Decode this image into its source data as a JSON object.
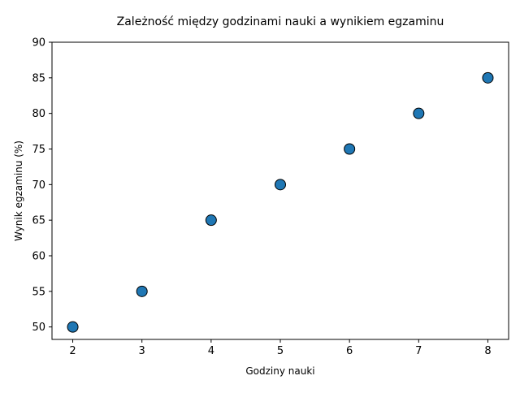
{
  "chart_data": {
    "type": "scatter",
    "title": "Zależność między godzinami nauki a wynikiem egzaminu",
    "xlabel": "Godziny nauki",
    "ylabel": "Wynik egzaminu (%)",
    "x": [
      2,
      3,
      4,
      5,
      6,
      7,
      8
    ],
    "y": [
      50,
      55,
      65,
      70,
      75,
      80,
      85
    ],
    "xlim": [
      1.7,
      8.3
    ],
    "ylim": [
      48.25,
      90
    ],
    "xticks": [
      2,
      3,
      4,
      5,
      6,
      7,
      8
    ],
    "yticks": [
      50,
      55,
      60,
      65,
      70,
      75,
      80,
      85,
      90
    ],
    "grid": false,
    "colors": {
      "marker_fill": "#1f77b4",
      "marker_edge": "#000000",
      "axes": "#000000"
    }
  }
}
